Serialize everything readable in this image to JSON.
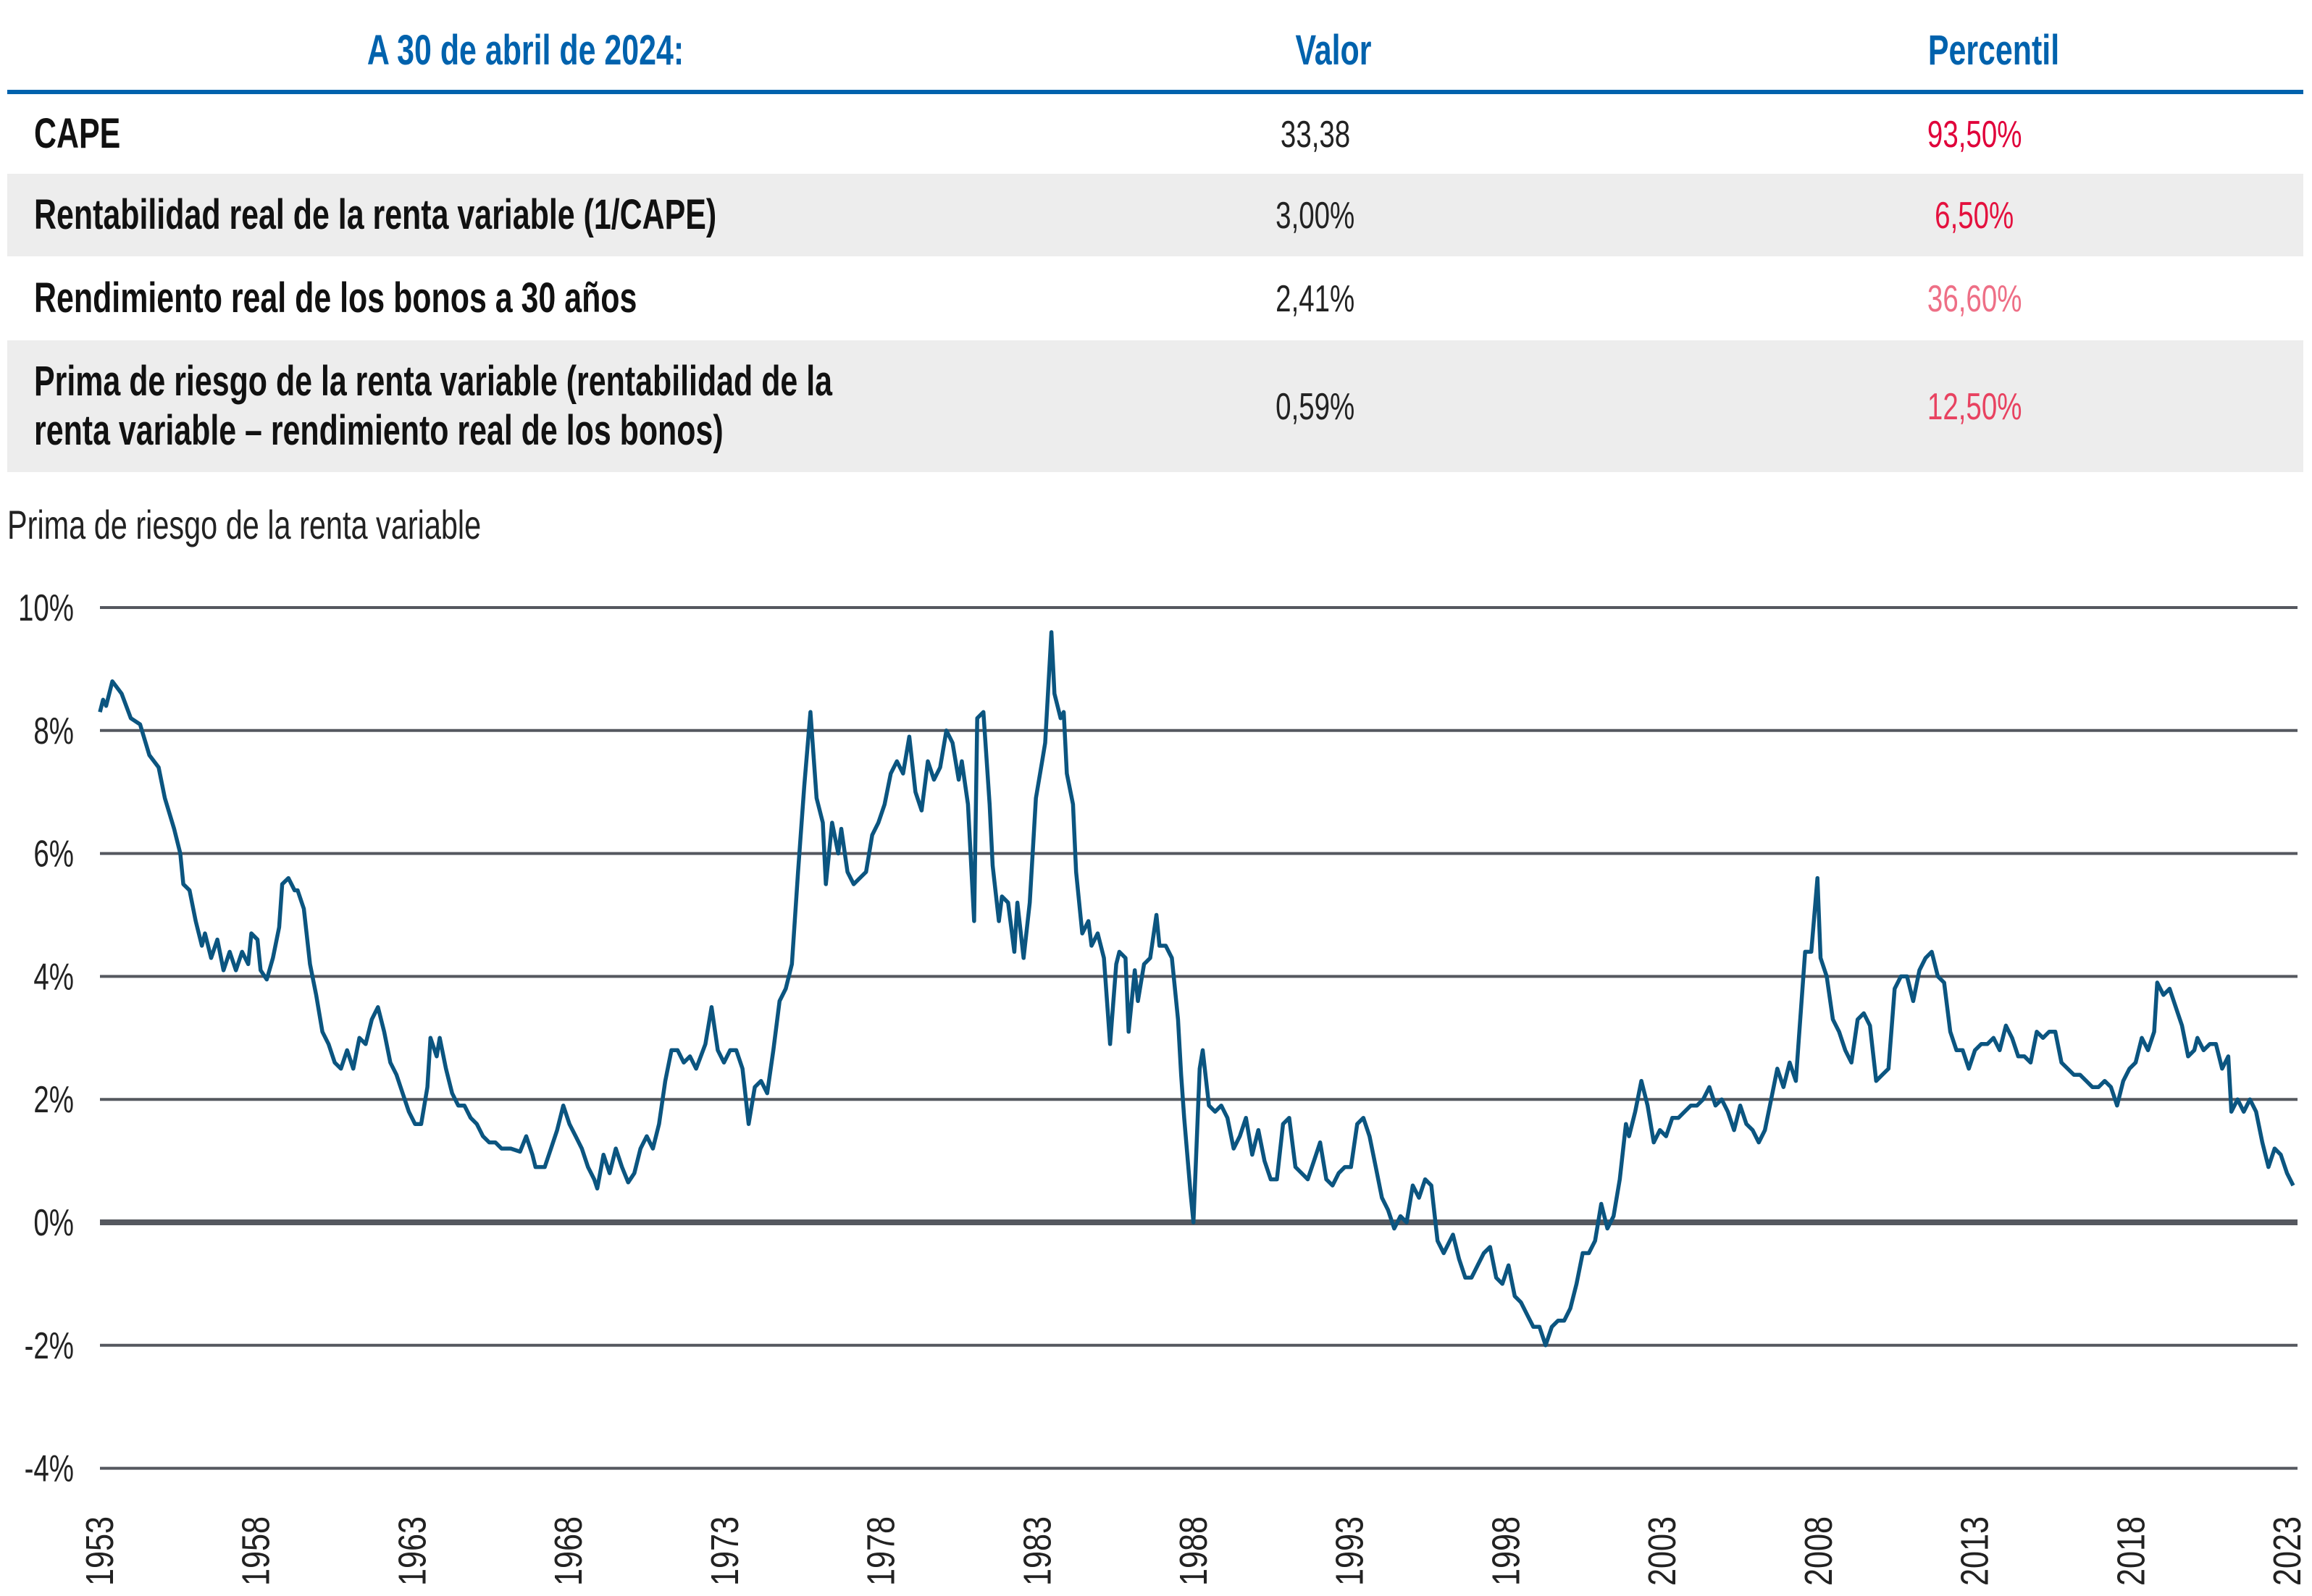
{
  "table": {
    "header": {
      "label": "A 30 de abril de 2024:",
      "value": "Valor",
      "percentile": "Percentil"
    },
    "rows": [
      {
        "label": "CAPE",
        "value": "33,38",
        "percentile": "93,50%",
        "color": "#E0003A"
      },
      {
        "label": "Rentabilidad real de la renta variable (1/CAPE)",
        "value": "3,00%",
        "percentile": "6,50%",
        "color": "#E4113E"
      },
      {
        "label": "Rendimiento real de los bonos a 30 años",
        "value": "2,41%",
        "percentile": "36,60%",
        "color": "#EE6F86"
      },
      {
        "label_line1": "Prima de riesgo de la renta variable (rentabilidad de la",
        "label_line2": "renta variable – rendimiento real de los bonos)",
        "value": "0,59%",
        "percentile": "12,50%",
        "color": "#E84260"
      }
    ]
  },
  "chart_data": {
    "type": "line",
    "title": "Prima de riesgo de la renta variable",
    "xlabel": "",
    "ylabel": "",
    "ylim": [
      -4,
      10
    ],
    "xlim": [
      1953,
      2024
    ],
    "y_ticks": [
      "10%",
      "8%",
      "6%",
      "4%",
      "2%",
      "0%",
      "-2%",
      "-4%"
    ],
    "y_tick_values": [
      10,
      8,
      6,
      4,
      2,
      0,
      -2,
      -4
    ],
    "x_ticks": [
      "1953",
      "1958",
      "1963",
      "1968",
      "1973",
      "1978",
      "1983",
      "1988",
      "1993",
      "1998",
      "2003",
      "2008",
      "2013",
      "2018",
      "2023"
    ],
    "grid": true,
    "line_color": "#0B5580",
    "grid_color": "#55585F",
    "series": [
      {
        "name": "Prima de riesgo de la renta variable",
        "x": [
          1953.0,
          1953.1,
          1953.2,
          1953.4,
          1953.7,
          1954.0,
          1954.3,
          1954.6,
          1954.9,
          1955.1,
          1955.4,
          1955.6,
          1955.7,
          1955.9,
          1956.1,
          1956.3,
          1956.4,
          1956.6,
          1956.8,
          1957.0,
          1957.2,
          1957.4,
          1957.6,
          1957.8,
          1957.9,
          1958.1,
          1958.2,
          1958.4,
          1958.6,
          1958.8,
          1958.9,
          1959.1,
          1959.3,
          1959.4,
          1959.6,
          1959.8,
          1960.0,
          1960.2,
          1960.4,
          1960.6,
          1960.8,
          1961.0,
          1961.2,
          1961.4,
          1961.6,
          1961.8,
          1962.0,
          1962.2,
          1962.4,
          1962.6,
          1962.8,
          1963.0,
          1963.2,
          1963.4,
          1963.6,
          1963.7,
          1963.9,
          1964.0,
          1964.2,
          1964.4,
          1964.6,
          1964.8,
          1965.0,
          1965.2,
          1965.4,
          1965.6,
          1965.8,
          1966.0,
          1966.3,
          1966.6,
          1966.8,
          1967.0,
          1967.1,
          1967.4,
          1967.6,
          1967.8,
          1968.0,
          1968.2,
          1968.4,
          1968.6,
          1968.8,
          1969.0,
          1969.1,
          1969.3,
          1969.5,
          1969.7,
          1969.9,
          1970.1,
          1970.3,
          1970.5,
          1970.7,
          1970.9,
          1971.1,
          1971.3,
          1971.5,
          1971.7,
          1971.9,
          1972.1,
          1972.3,
          1972.6,
          1972.8,
          1973.0,
          1973.2,
          1973.4,
          1973.6,
          1973.8,
          1974.0,
          1974.2,
          1974.4,
          1974.6,
          1974.8,
          1975.0,
          1975.2,
          1975.4,
          1975.6,
          1975.8,
          1976.0,
          1976.2,
          1976.4,
          1976.5,
          1976.7,
          1976.9,
          1977.0,
          1977.2,
          1977.4,
          1977.6,
          1977.8,
          1978.0,
          1978.2,
          1978.4,
          1978.6,
          1978.8,
          1979.0,
          1979.2,
          1979.4,
          1979.6,
          1979.8,
          1980.0,
          1980.2,
          1980.4,
          1980.6,
          1980.8,
          1980.9,
          1981.1,
          1981.3,
          1981.4,
          1981.6,
          1981.8,
          1981.9,
          1982.1,
          1982.2,
          1982.4,
          1982.6,
          1982.7,
          1982.9,
          1983.1,
          1983.3,
          1983.5,
          1983.6,
          1983.8,
          1983.9,
          1984.1,
          1984.2,
          1984.3,
          1984.5,
          1984.6,
          1984.8,
          1985.0,
          1985.1,
          1985.3,
          1985.5,
          1985.7,
          1985.9,
          1986.0,
          1986.2,
          1986.3,
          1986.5,
          1986.6,
          1986.8,
          1987.0,
          1987.2,
          1987.3,
          1987.5,
          1987.7,
          1987.9,
          1988.0,
          1988.1,
          1988.3,
          1988.4,
          1988.6,
          1988.7,
          1988.9,
          1989.1,
          1989.3,
          1989.5,
          1989.7,
          1989.9,
          1990.1,
          1990.3,
          1990.5,
          1990.7,
          1990.9,
          1991.1,
          1991.3,
          1991.5,
          1991.7,
          1991.9,
          1992.1,
          1992.3,
          1992.5,
          1992.7,
          1992.9,
          1993.1,
          1993.3,
          1993.5,
          1993.7,
          1993.9,
          1994.1,
          1994.3,
          1994.5,
          1994.7,
          1994.9,
          1995.1,
          1995.3,
          1995.5,
          1995.7,
          1995.9,
          1996.1,
          1996.3,
          1996.5,
          1996.7,
          1996.8,
          1997.0,
          1997.2,
          1997.4,
          1997.6,
          1997.8,
          1998.0,
          1998.2,
          1998.4,
          1998.6,
          1998.8,
          1999.0,
          1999.2,
          1999.4,
          1999.6,
          1999.8,
          2000.0,
          2000.2,
          2000.4,
          2000.6,
          2000.8,
          2001.0,
          2001.2,
          2001.4,
          2001.6,
          2001.8,
          2002.0,
          2002.2,
          2002.4,
          2002.5,
          2002.7,
          2002.9,
          2003.1,
          2003.3,
          2003.5,
          2003.7,
          2003.9,
          2004.1,
          2004.3,
          2004.5,
          2004.7,
          2004.9,
          2005.1,
          2005.3,
          2005.5,
          2005.7,
          2005.9,
          2006.1,
          2006.3,
          2006.5,
          2006.7,
          2006.9,
          2007.1,
          2007.3,
          2007.5,
          2007.7,
          2007.9,
          2008.0,
          2008.2,
          2008.4,
          2008.6,
          2008.7,
          2008.9,
          2009.1,
          2009.3,
          2009.5,
          2009.7,
          2009.9,
          2010.1,
          2010.3,
          2010.5,
          2010.7,
          2010.9,
          2011.1,
          2011.3,
          2011.5,
          2011.7,
          2011.9,
          2012.1,
          2012.3,
          2012.5,
          2012.7,
          2012.9,
          2013.1,
          2013.3,
          2013.5,
          2013.7,
          2013.9,
          2014.1,
          2014.3,
          2014.5,
          2014.7,
          2014.9,
          2015.1,
          2015.3,
          2015.5,
          2015.7,
          2015.9,
          2016.1,
          2016.3,
          2016.5,
          2016.7,
          2016.9,
          2017.1,
          2017.3,
          2017.5,
          2017.7,
          2017.9,
          2018.1,
          2018.3,
          2018.5,
          2018.7,
          2018.9,
          2019.1,
          2019.3,
          2019.5,
          2019.6,
          2019.8,
          2020.0,
          2020.2,
          2020.4,
          2020.6,
          2020.8,
          2020.9,
          2021.1,
          2021.3,
          2021.5,
          2021.7,
          2021.9,
          2022.0,
          2022.2,
          2022.4,
          2022.6,
          2022.8,
          2023.0,
          2023.2,
          2023.4,
          2023.6,
          2023.8,
          2024.0
        ],
        "y": [
          8.3,
          8.5,
          8.4,
          8.8,
          8.6,
          8.2,
          8.1,
          7.6,
          7.4,
          6.9,
          6.4,
          6.0,
          5.5,
          5.4,
          4.9,
          4.5,
          4.7,
          4.3,
          4.6,
          4.1,
          4.4,
          4.1,
          4.4,
          4.2,
          4.7,
          4.6,
          4.1,
          3.95,
          4.3,
          4.8,
          5.5,
          5.6,
          5.4,
          5.4,
          5.1,
          4.2,
          3.7,
          3.1,
          2.9,
          2.6,
          2.5,
          2.8,
          2.5,
          3.0,
          2.9,
          3.3,
          3.5,
          3.1,
          2.6,
          2.4,
          2.1,
          1.8,
          1.6,
          1.6,
          2.2,
          3.0,
          2.7,
          3.0,
          2.5,
          2.1,
          1.9,
          1.9,
          1.7,
          1.6,
          1.4,
          1.3,
          1.3,
          1.2,
          1.2,
          1.15,
          1.4,
          1.1,
          0.9,
          0.9,
          1.2,
          1.5,
          1.9,
          1.6,
          1.4,
          1.2,
          0.9,
          0.7,
          0.55,
          1.1,
          0.8,
          1.2,
          0.9,
          0.65,
          0.8,
          1.2,
          1.4,
          1.2,
          1.6,
          2.3,
          2.8,
          2.8,
          2.6,
          2.7,
          2.5,
          2.9,
          3.5,
          2.8,
          2.6,
          2.8,
          2.8,
          2.5,
          1.6,
          2.2,
          2.3,
          2.1,
          2.8,
          3.6,
          3.8,
          4.2,
          5.7,
          7.1,
          8.3,
          6.9,
          6.5,
          5.5,
          6.5,
          6.0,
          6.4,
          5.7,
          5.5,
          5.6,
          5.7,
          6.3,
          6.5,
          6.8,
          7.3,
          7.5,
          7.3,
          7.9,
          7.0,
          6.7,
          7.5,
          7.2,
          7.4,
          8.0,
          7.8,
          7.2,
          7.5,
          6.8,
          4.9,
          8.2,
          8.3,
          6.8,
          5.8,
          4.9,
          5.3,
          5.2,
          4.4,
          5.2,
          4.3,
          5.2,
          6.9,
          7.5,
          7.8,
          9.6,
          8.6,
          8.2,
          8.3,
          7.3,
          6.8,
          5.7,
          4.7,
          4.9,
          4.5,
          4.7,
          4.3,
          2.9,
          4.2,
          4.4,
          4.3,
          3.1,
          4.1,
          3.6,
          4.2,
          4.3,
          5.0,
          4.5,
          4.5,
          4.3,
          3.3,
          2.4,
          1.7,
          0.5,
          0.0,
          2.5,
          2.8,
          1.9,
          1.8,
          1.9,
          1.7,
          1.2,
          1.4,
          1.7,
          1.1,
          1.5,
          1.0,
          0.7,
          0.7,
          1.6,
          1.7,
          0.9,
          0.8,
          0.7,
          1.0,
          1.3,
          0.7,
          0.6,
          0.8,
          0.9,
          0.9,
          1.6,
          1.7,
          1.4,
          0.9,
          0.4,
          0.2,
          -0.1,
          0.1,
          0.0,
          0.6,
          0.4,
          0.7,
          0.6,
          -0.3,
          -0.5,
          -0.3,
          -0.2,
          -0.6,
          -0.9,
          -0.9,
          -0.7,
          -0.5,
          -0.4,
          -0.9,
          -1.0,
          -0.7,
          -1.2,
          -1.3,
          -1.5,
          -1.7,
          -1.7,
          -2.0,
          -1.7,
          -1.6,
          -1.6,
          -1.4,
          -1.0,
          -0.5,
          -0.5,
          -0.3,
          0.3,
          -0.1,
          0.1,
          0.7,
          1.6,
          1.4,
          1.8,
          2.3,
          1.9,
          1.3,
          1.5,
          1.4,
          1.7,
          1.7,
          1.8,
          1.9,
          1.9,
          2.0,
          2.2,
          1.9,
          2.0,
          1.8,
          1.5,
          1.9,
          1.6,
          1.5,
          1.3,
          1.5,
          2.0,
          2.5,
          2.2,
          2.6,
          2.3,
          3.0,
          4.4,
          4.4,
          5.6,
          4.3,
          4.0,
          3.3,
          3.1,
          2.8,
          2.6,
          3.3,
          3.4,
          3.2,
          2.3,
          2.4,
          2.5,
          3.8,
          4.0,
          4.0,
          3.6,
          4.1,
          4.3,
          4.4,
          4.0,
          3.9,
          3.1,
          2.8,
          2.8,
          2.5,
          2.8,
          2.9,
          2.9,
          3.0,
          2.8,
          3.2,
          3.0,
          2.7,
          2.7,
          2.6,
          3.1,
          3.0,
          3.1,
          3.1,
          2.6,
          2.5,
          2.4,
          2.4,
          2.3,
          2.2,
          2.2,
          2.3,
          2.2,
          1.9,
          2.3,
          2.5,
          2.6,
          3.0,
          2.8,
          3.1,
          3.9,
          3.7,
          3.8,
          3.5,
          3.2,
          2.7,
          2.8,
          3.0,
          2.8,
          2.9,
          2.9,
          2.5,
          2.7,
          1.8,
          2.0,
          1.8,
          2.0,
          1.8,
          1.3,
          0.9,
          1.2,
          1.1,
          0.8,
          0.6
        ]
      }
    ]
  }
}
